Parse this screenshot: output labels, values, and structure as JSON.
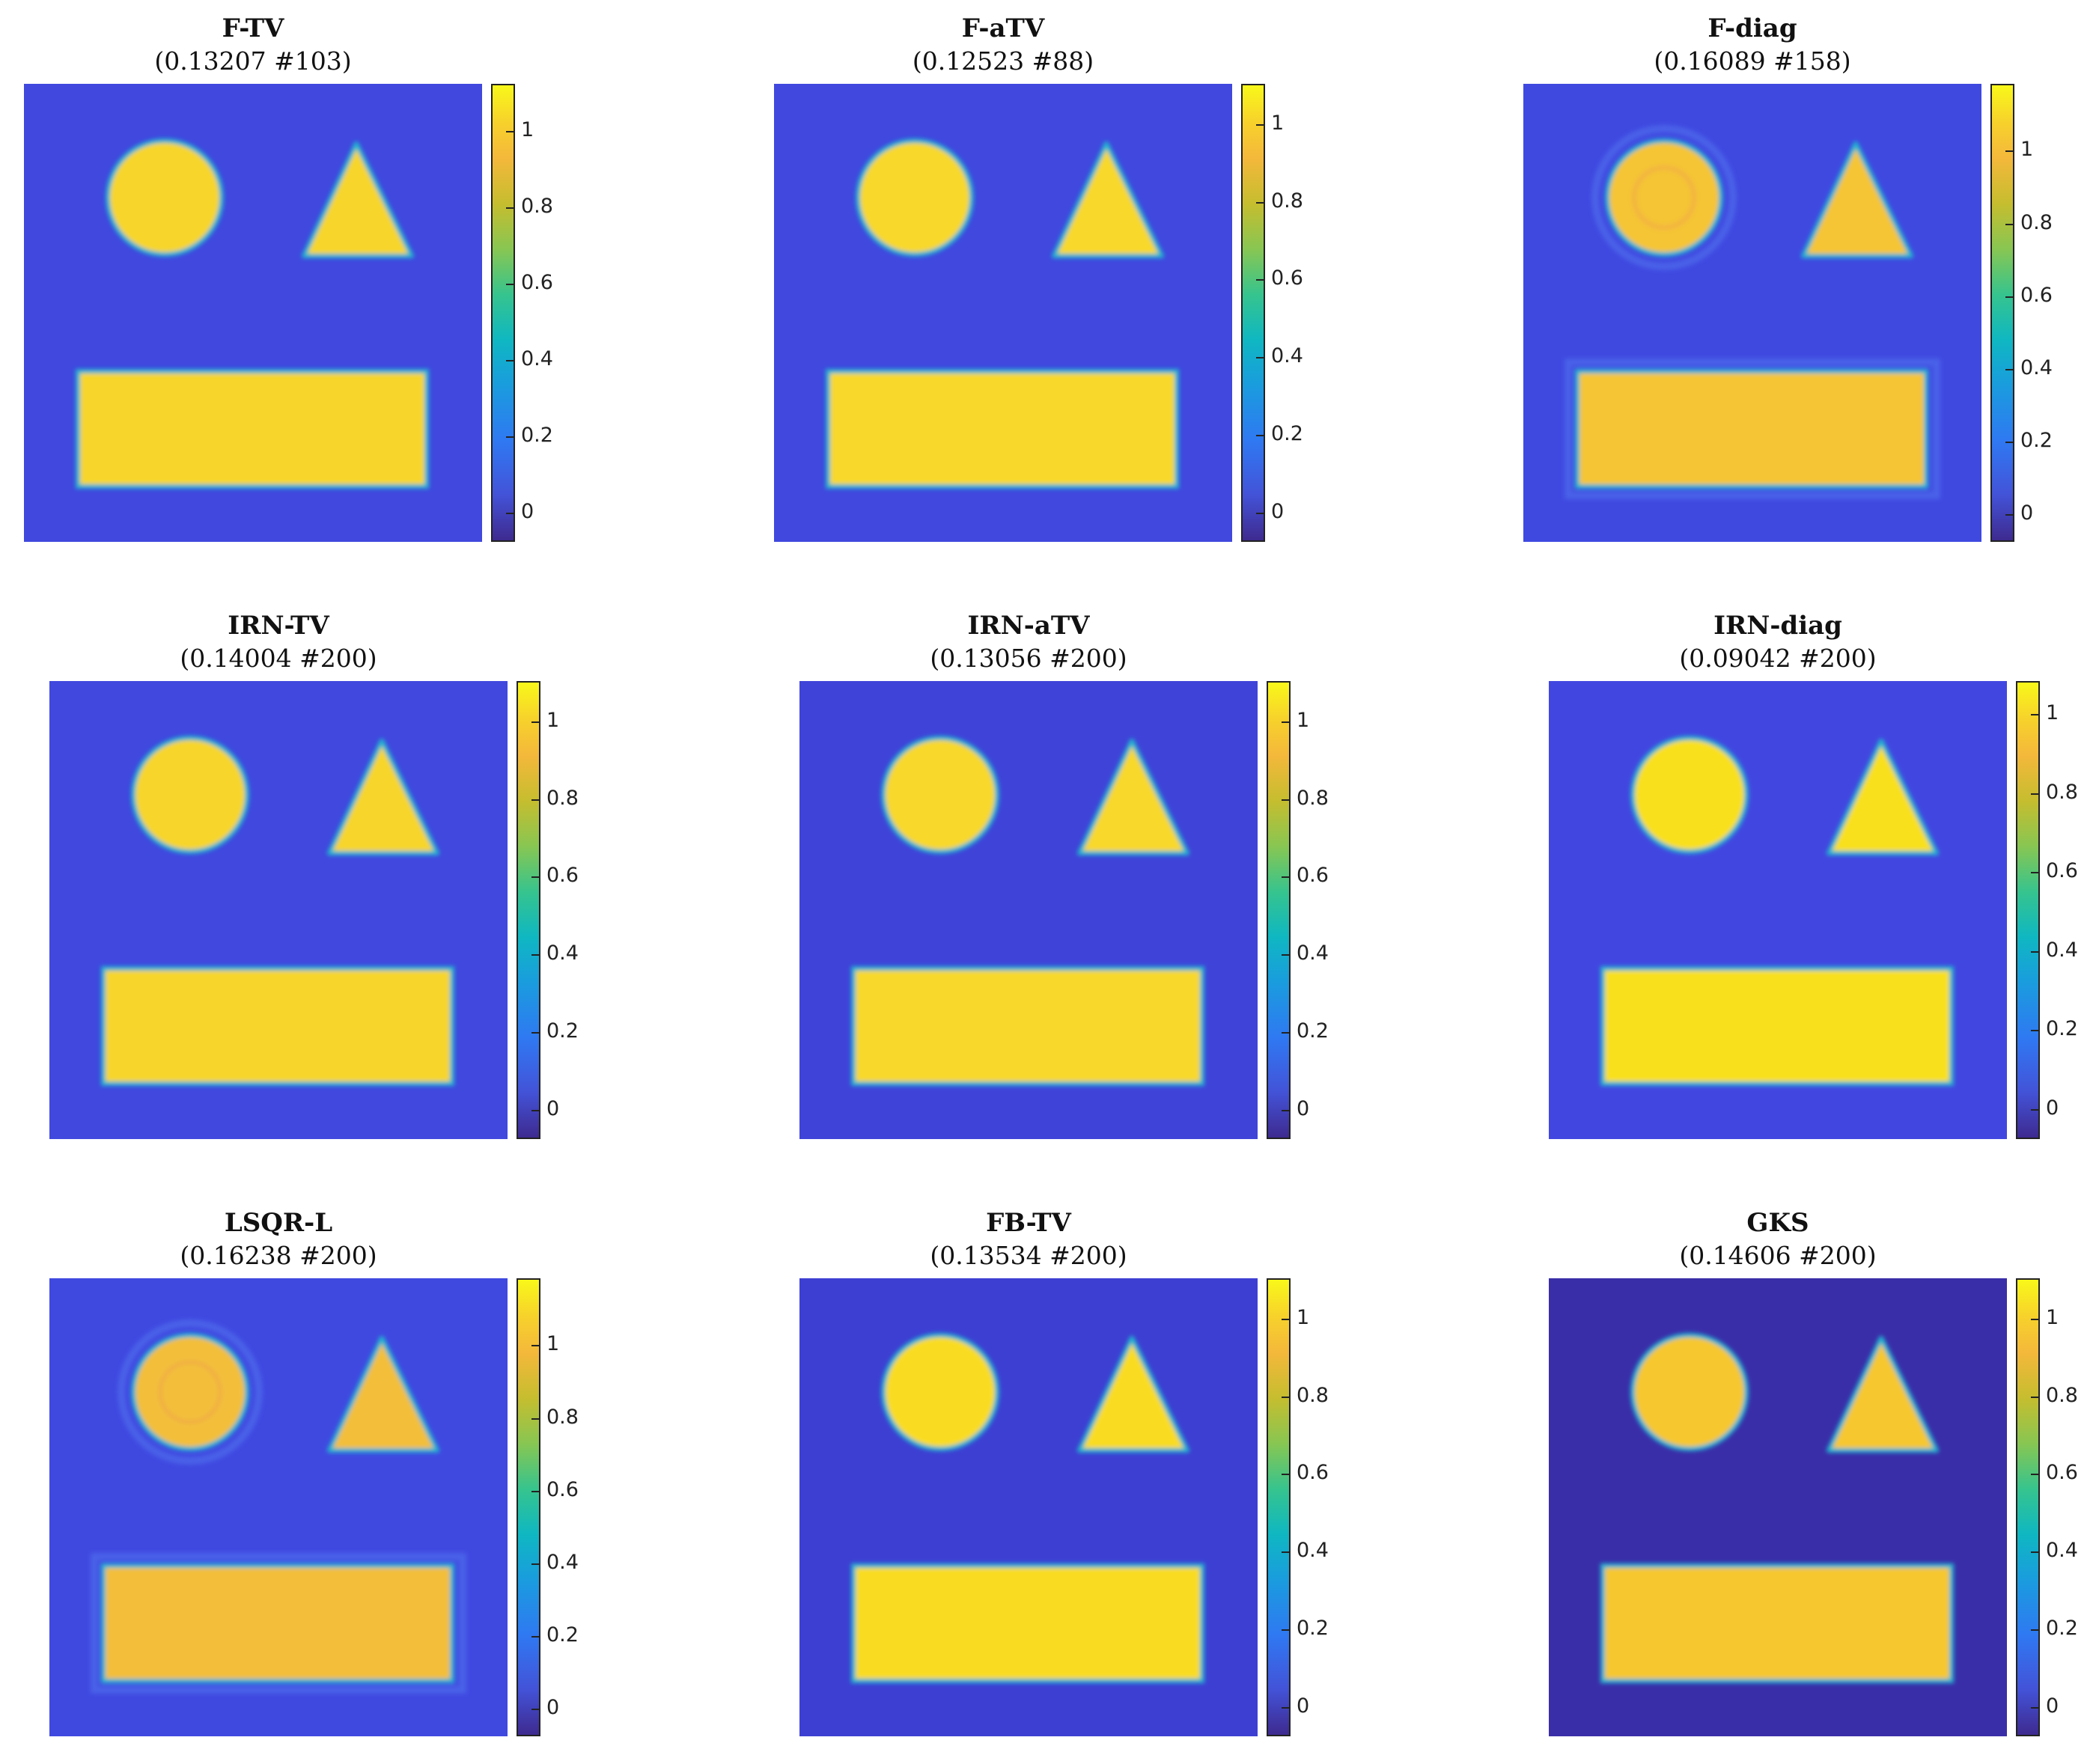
{
  "figure": {
    "panels": [
      {
        "id": "f-tv",
        "name": "F-TV",
        "subtitle": "(0.13207 #103)",
        "colorbar_ticks": [
          "0",
          "0.2",
          "0.4",
          "0.6",
          "0.8",
          "1"
        ],
        "ticks_num": [
          0,
          0.2,
          0.4,
          0.6,
          0.8,
          1
        ],
        "cmax": 1.12,
        "bg": "#4048de",
        "fg": "#f7d52b",
        "ringing": false
      },
      {
        "id": "f-atv",
        "name": "F-aTV",
        "subtitle": "(0.12523 #88)",
        "colorbar_ticks": [
          "0",
          "0.2",
          "0.4",
          "0.6",
          "0.8",
          "1"
        ],
        "ticks_num": [
          0,
          0.2,
          0.4,
          0.6,
          0.8,
          1
        ],
        "cmax": 1.1,
        "bg": "#4048de",
        "fg": "#f8d82a",
        "ringing": false
      },
      {
        "id": "f-diag",
        "name": "F-diag",
        "subtitle": "(0.16089 #158)",
        "colorbar_ticks": [
          "0",
          "0.2",
          "0.4",
          "0.6",
          "0.8",
          "1"
        ],
        "ticks_num": [
          0,
          0.2,
          0.4,
          0.6,
          0.8,
          1
        ],
        "cmax": 1.18,
        "bg": "#3f49e0",
        "fg": "#f5c536",
        "ringing": true
      },
      {
        "id": "irn-tv",
        "name": "IRN-TV",
        "subtitle": "(0.14004 #200)",
        "colorbar_ticks": [
          "0",
          "0.2",
          "0.4",
          "0.6",
          "0.8",
          "1"
        ],
        "ticks_num": [
          0,
          0.2,
          0.4,
          0.6,
          0.8,
          1
        ],
        "cmax": 1.1,
        "bg": "#4048de",
        "fg": "#f7d52b",
        "ringing": false
      },
      {
        "id": "irn-atv",
        "name": "IRN-aTV",
        "subtitle": "(0.13056 #200)",
        "colorbar_ticks": [
          "0",
          "0.2",
          "0.4",
          "0.6",
          "0.8",
          "1"
        ],
        "ticks_num": [
          0,
          0.2,
          0.4,
          0.6,
          0.8,
          1
        ],
        "cmax": 1.1,
        "bg": "#3f43d8",
        "fg": "#f8d82a",
        "ringing": false
      },
      {
        "id": "irn-diag",
        "name": "IRN-diag",
        "subtitle": "(0.09042 #200)",
        "colorbar_ticks": [
          "0",
          "0.2",
          "0.4",
          "0.6",
          "0.8",
          "1"
        ],
        "ticks_num": [
          0,
          0.2,
          0.4,
          0.6,
          0.8,
          1
        ],
        "cmax": 1.08,
        "bg": "#4246e0",
        "fg": "#f9e01c",
        "ringing": false
      },
      {
        "id": "lsqr-l",
        "name": "LSQR-L",
        "subtitle": "(0.16238 #200)",
        "colorbar_ticks": [
          "0",
          "0.2",
          "0.4",
          "0.6",
          "0.8",
          "1"
        ],
        "ticks_num": [
          0,
          0.2,
          0.4,
          0.6,
          0.8,
          1
        ],
        "cmax": 1.18,
        "bg": "#3f49e0",
        "fg": "#f3bf3a",
        "ringing": true
      },
      {
        "id": "fb-tv",
        "name": "FB-TV",
        "subtitle": "(0.13534 #200)",
        "colorbar_ticks": [
          "0",
          "0.2",
          "0.4",
          "0.6",
          "0.8",
          "1"
        ],
        "ticks_num": [
          0,
          0.2,
          0.4,
          0.6,
          0.8,
          1
        ],
        "cmax": 1.1,
        "bg": "#3d3fd2",
        "fg": "#f9dc22",
        "ringing": false
      },
      {
        "id": "gks",
        "name": "GKS",
        "subtitle": "(0.14606 #200)",
        "colorbar_ticks": [
          "0",
          "0.2",
          "0.4",
          "0.6",
          "0.8",
          "1"
        ],
        "ticks_num": [
          0,
          0.2,
          0.4,
          0.6,
          0.8,
          1
        ],
        "cmax": 1.1,
        "bg": "#3a2ea8",
        "fg": "#f6c72f",
        "ringing": false
      }
    ]
  },
  "chart_data": {
    "type": "heatmap",
    "layout": "3x3 grid",
    "series": [
      {
        "name": "F-TV",
        "relative_error": 0.13207,
        "iterations": 103
      },
      {
        "name": "F-aTV",
        "relative_error": 0.12523,
        "iterations": 88
      },
      {
        "name": "F-diag",
        "relative_error": 0.16089,
        "iterations": 158
      },
      {
        "name": "IRN-TV",
        "relative_error": 0.14004,
        "iterations": 200
      },
      {
        "name": "IRN-aTV",
        "relative_error": 0.13056,
        "iterations": 200
      },
      {
        "name": "IRN-diag",
        "relative_error": 0.09042,
        "iterations": 200
      },
      {
        "name": "LSQR-L",
        "relative_error": 0.16238,
        "iterations": 200
      },
      {
        "name": "FB-TV",
        "relative_error": 0.13534,
        "iterations": 200
      },
      {
        "name": "GKS",
        "relative_error": 0.14606,
        "iterations": 200
      }
    ],
    "colormap": "parula",
    "colorbar_range": [
      0,
      1
    ]
  }
}
